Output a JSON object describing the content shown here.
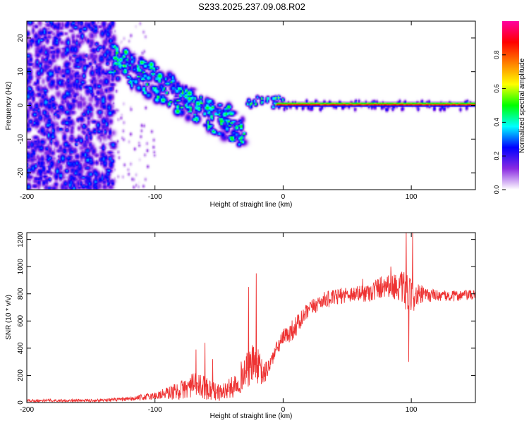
{
  "page": {
    "title": "S233.2025.237.09.08.R02"
  },
  "chart_data": [
    {
      "type": "heatmap",
      "title": "S233.2025.237.09.08.R02",
      "xlabel": "Height of straight line (km)",
      "ylabel": "Frequency (Hz)",
      "xlim": [
        -200,
        150
      ],
      "ylim": [
        -25,
        25
      ],
      "x_ticks": [
        -200,
        -100,
        0,
        100
      ],
      "y_ticks": [
        -20,
        -10,
        0,
        10,
        20
      ],
      "colorbar": {
        "label": "Normalized spectral amplitude",
        "range": [
          0,
          1
        ],
        "ticks": [
          0.0,
          0.2,
          0.4,
          0.6,
          0.8
        ],
        "tick_labels": [
          "0.0",
          "0.2",
          "0.4",
          "0.6",
          "0.8"
        ],
        "colors": [
          "#ffffff",
          "#8a2be2",
          "#0000ff",
          "#00ffff",
          "#00ff00",
          "#ffff00",
          "#ff8000",
          "#ff0000",
          "#ff00a0"
        ]
      },
      "features": {
        "noise_region_x": [
          -200,
          -140
        ],
        "noise_amplitude": 0.35,
        "descending_track": {
          "x": [
            -135,
            -30
          ],
          "freq_hz": [
            14,
            -8
          ],
          "peak_amplitude": 0.4
        },
        "carrier_line": {
          "x": [
            -5,
            150
          ],
          "freq_hz": 0,
          "amplitude": 0.95
        }
      }
    },
    {
      "type": "line",
      "title": "",
      "xlabel": "Height of straight line (km)",
      "ylabel": "SNR (10 * v/v)",
      "xlim": [
        -200,
        150
      ],
      "ylim": [
        0,
        1250
      ],
      "x_ticks": [
        -200,
        -100,
        0,
        100
      ],
      "y_ticks": [
        0,
        200,
        400,
        600,
        800,
        1000,
        1200
      ],
      "series": [
        {
          "name": "SNR",
          "color": "#ee3333",
          "x": [
            -200,
            -150,
            -120,
            -100,
            -80,
            -70,
            -60,
            -50,
            -40,
            -30,
            -22,
            -15,
            -10,
            -5,
            0,
            10,
            20,
            30,
            40,
            50,
            60,
            70,
            80,
            90,
            95,
            100,
            110,
            120,
            130,
            140,
            150
          ],
          "values": [
            15,
            15,
            25,
            50,
            90,
            130,
            110,
            70,
            110,
            220,
            300,
            200,
            290,
            400,
            470,
            560,
            680,
            750,
            770,
            800,
            800,
            820,
            870,
            850,
            820,
            780,
            790,
            790,
            780,
            790,
            790
          ],
          "noise_amp": [
            10,
            10,
            15,
            30,
            70,
            90,
            90,
            60,
            80,
            130,
            150,
            90,
            60,
            50,
            70,
            80,
            60,
            60,
            60,
            60,
            60,
            80,
            90,
            100,
            150,
            120,
            60,
            40,
            40,
            40,
            40
          ]
        }
      ],
      "spikes": [
        {
          "x": -68,
          "value": 390
        },
        {
          "x": -61,
          "value": 440
        },
        {
          "x": -55,
          "value": 320
        },
        {
          "x": -27,
          "value": 850
        },
        {
          "x": -21,
          "value": 950
        },
        {
          "x": 62,
          "value": 910
        },
        {
          "x": 84,
          "value": 1000
        },
        {
          "x": 96,
          "value": 1250
        },
        {
          "x": 98,
          "value": 300
        },
        {
          "x": 101,
          "value": 1250
        }
      ]
    }
  ]
}
